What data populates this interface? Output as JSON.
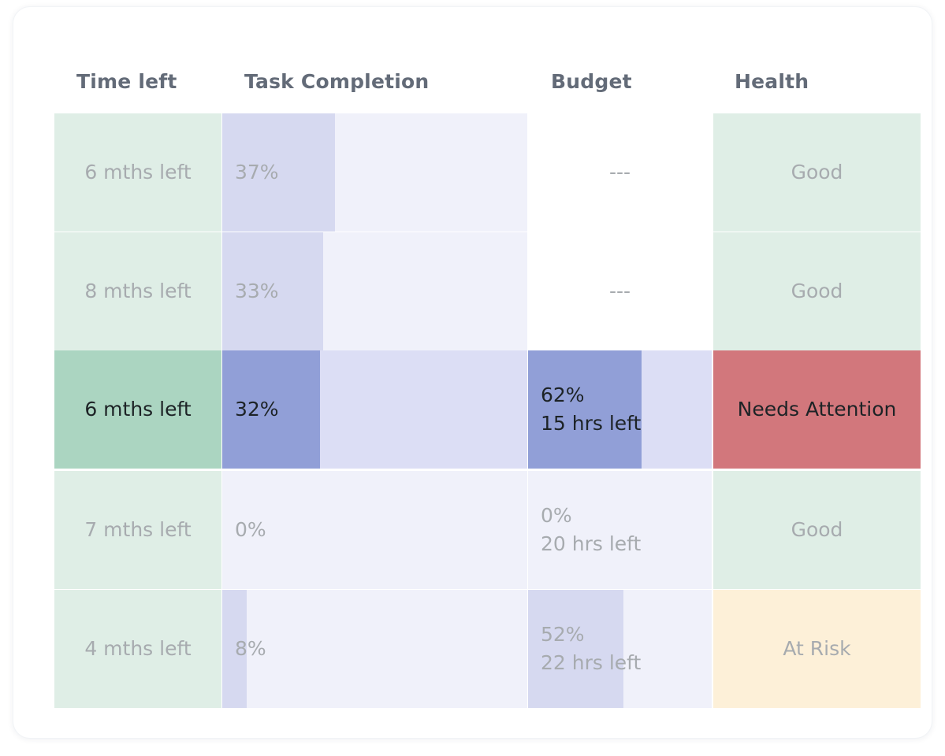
{
  "headers": {
    "time_left": "Time left",
    "task_completion": "Task Completion",
    "budget": "Budget",
    "health": "Health"
  },
  "rows": [
    {
      "time_left": "6 mths left",
      "task_completion": "37%",
      "task_completion_value": 0.37,
      "budget_line1": "---",
      "budget_line2": "",
      "budget_value": null,
      "health": "Good",
      "health_status": "good",
      "highlighted": false
    },
    {
      "time_left": "8 mths left",
      "task_completion": "33%",
      "task_completion_value": 0.33,
      "budget_line1": "---",
      "budget_line2": "",
      "budget_value": null,
      "health": "Good",
      "health_status": "good",
      "highlighted": false
    },
    {
      "time_left": "6 mths left",
      "task_completion": "32%",
      "task_completion_value": 0.32,
      "budget_line1": "62%",
      "budget_line2": "15 hrs left",
      "budget_value": 0.62,
      "health": "Needs Attention",
      "health_status": "bad",
      "highlighted": true
    },
    {
      "time_left": "7 mths left",
      "task_completion": "0%",
      "task_completion_value": 0.0,
      "budget_line1": "0%",
      "budget_line2": "20 hrs left",
      "budget_value": 0.0,
      "health": "Good",
      "health_status": "good",
      "highlighted": false
    },
    {
      "time_left": "4 mths left",
      "task_completion": "8%",
      "task_completion_value": 0.08,
      "budget_line1": "52%",
      "budget_line2": "22 hrs left",
      "budget_value": 0.52,
      "health": "At Risk",
      "health_status": "risk",
      "highlighted": false
    }
  ],
  "colors": {
    "health_good": "#dfeee6",
    "health_needs_attention": "#d2777c",
    "health_at_risk": "#fdf0d8",
    "progress_fill": "#919fd7",
    "progress_track": "#dcdef5"
  }
}
